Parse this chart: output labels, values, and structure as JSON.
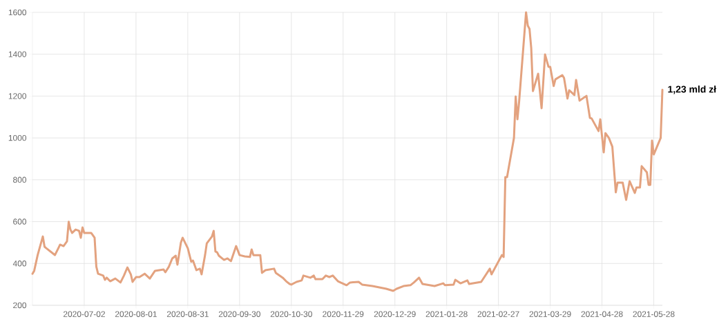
{
  "chart_data": {
    "type": "line",
    "x": [
      "2020-06-02",
      "2020-06-03",
      "2020-06-05",
      "2020-06-08",
      "2020-06-09",
      "2020-06-10",
      "2020-06-14",
      "2020-06-15",
      "2020-06-17",
      "2020-06-18",
      "2020-06-20",
      "2020-06-22",
      "2020-06-23",
      "2020-06-24",
      "2020-06-25",
      "2020-06-27",
      "2020-06-29",
      "2020-06-30",
      "2020-07-01",
      "2020-07-02",
      "2020-07-06",
      "2020-07-08",
      "2020-07-09",
      "2020-07-10",
      "2020-07-13",
      "2020-07-14",
      "2020-07-15",
      "2020-07-17",
      "2020-07-20",
      "2020-07-23",
      "2020-07-25",
      "2020-07-27",
      "2020-07-29",
      "2020-07-30",
      "2020-08-01",
      "2020-08-03",
      "2020-08-06",
      "2020-08-09",
      "2020-08-12",
      "2020-08-17",
      "2020-08-18",
      "2020-08-20",
      "2020-08-22",
      "2020-08-24",
      "2020-08-25",
      "2020-08-27",
      "2020-08-28",
      "2020-08-31",
      "2020-09-02",
      "2020-09-03",
      "2020-09-05",
      "2020-09-07",
      "2020-09-08",
      "2020-09-10",
      "2020-09-11",
      "2020-09-14",
      "2020-09-15",
      "2020-09-16",
      "2020-09-17",
      "2020-09-18",
      "2020-09-21",
      "2020-09-23",
      "2020-09-25",
      "2020-09-28",
      "2020-09-30",
      "2020-10-03",
      "2020-10-06",
      "2020-10-07",
      "2020-10-08",
      "2020-10-12",
      "2020-10-13",
      "2020-10-15",
      "2020-10-20",
      "2020-10-21",
      "2020-10-25",
      "2020-10-27",
      "2020-10-29",
      "2020-10-30",
      "2020-11-02",
      "2020-11-05",
      "2020-11-06",
      "2020-11-10",
      "2020-11-12",
      "2020-11-13",
      "2020-11-17",
      "2020-11-19",
      "2020-11-21",
      "2020-11-23",
      "2020-11-26",
      "2020-12-01",
      "2020-12-03",
      "2020-12-08",
      "2020-12-10",
      "2020-12-16",
      "2020-12-24",
      "2020-12-28",
      "2020-12-30",
      "2021-01-03",
      "2021-01-07",
      "2021-01-09",
      "2021-01-12",
      "2021-01-14",
      "2021-01-21",
      "2021-01-26",
      "2021-01-27",
      "2021-02-01",
      "2021-02-02",
      "2021-02-05",
      "2021-02-09",
      "2021-02-10",
      "2021-02-17",
      "2021-02-22",
      "2021-02-23",
      "2021-03-01",
      "2021-03-02",
      "2021-03-03",
      "2021-03-04",
      "2021-03-08",
      "2021-03-09",
      "2021-03-10",
      "2021-03-11",
      "2021-03-15",
      "2021-03-16",
      "2021-03-17",
      "2021-03-18",
      "2021-03-19",
      "2021-03-22",
      "2021-03-24",
      "2021-03-26",
      "2021-03-28",
      "2021-03-29",
      "2021-03-31",
      "2021-04-01",
      "2021-04-05",
      "2021-04-06",
      "2021-04-08",
      "2021-04-09",
      "2021-04-12",
      "2021-04-13",
      "2021-04-15",
      "2021-04-19",
      "2021-04-21",
      "2021-04-22",
      "2021-04-26",
      "2021-04-27",
      "2021-04-29",
      "2021-04-30",
      "2021-05-02",
      "2021-05-04",
      "2021-05-06",
      "2021-05-07",
      "2021-05-10",
      "2021-05-12",
      "2021-05-14",
      "2021-05-17",
      "2021-05-18",
      "2021-05-20",
      "2021-05-21",
      "2021-05-24",
      "2021-05-25",
      "2021-05-26",
      "2021-05-27",
      "2021-05-28",
      "2021-06-01",
      "2021-06-02"
    ],
    "series": [
      {
        "color": "#e3a27f",
        "values": [
          351,
          365,
          440,
          529,
          480,
          473,
          447,
          440,
          473,
          490,
          483,
          506,
          599,
          562,
          546,
          562,
          556,
          523,
          572,
          546,
          546,
          523,
          385,
          351,
          342,
          322,
          332,
          315,
          328,
          309,
          342,
          381,
          348,
          312,
          335,
          335,
          351,
          328,
          365,
          371,
          358,
          384,
          424,
          437,
          394,
          500,
          523,
          473,
          408,
          414,
          368,
          375,
          348,
          440,
          496,
          529,
          556,
          457,
          453,
          437,
          417,
          424,
          411,
          483,
          440,
          434,
          431,
          467,
          440,
          440,
          355,
          368,
          375,
          355,
          332,
          315,
          302,
          299,
          312,
          319,
          342,
          332,
          342,
          325,
          325,
          342,
          335,
          342,
          315,
          296,
          309,
          312,
          299,
          292,
          279,
          269,
          279,
          292,
          296,
          309,
          332,
          302,
          292,
          305,
          296,
          299,
          322,
          305,
          319,
          302,
          312,
          375,
          348,
          440,
          431,
          813,
          813,
          1000,
          1198,
          1089,
          1175,
          1600,
          1537,
          1521,
          1429,
          1224,
          1307,
          1142,
          1399,
          1340,
          1340,
          1248,
          1280,
          1300,
          1287,
          1188,
          1228,
          1205,
          1277,
          1178,
          1201,
          1096,
          1093,
          1033,
          1089,
          931,
          1023,
          1000,
          958,
          740,
          786,
          786,
          704,
          793,
          737,
          763,
          763,
          865,
          836,
          776,
          776,
          987,
          921,
          1000,
          1230
        ]
      }
    ],
    "xlim": [
      "2020-06-02",
      "2021-06-02"
    ],
    "xticks": [
      "2020-07-02",
      "2020-08-01",
      "2020-08-31",
      "2020-09-30",
      "2020-10-30",
      "2020-11-29",
      "2020-12-29",
      "2021-01-28",
      "2021-02-27",
      "2021-03-29",
      "2021-04-28",
      "2021-05-28"
    ],
    "ylim": [
      200,
      1600
    ],
    "yticks": [
      200,
      400,
      600,
      800,
      1000,
      1200,
      1400,
      1600
    ],
    "grid": true,
    "annotations": [
      {
        "text": "1,23 mld zł",
        "x": "2021-06-02",
        "y": 1230
      }
    ]
  }
}
